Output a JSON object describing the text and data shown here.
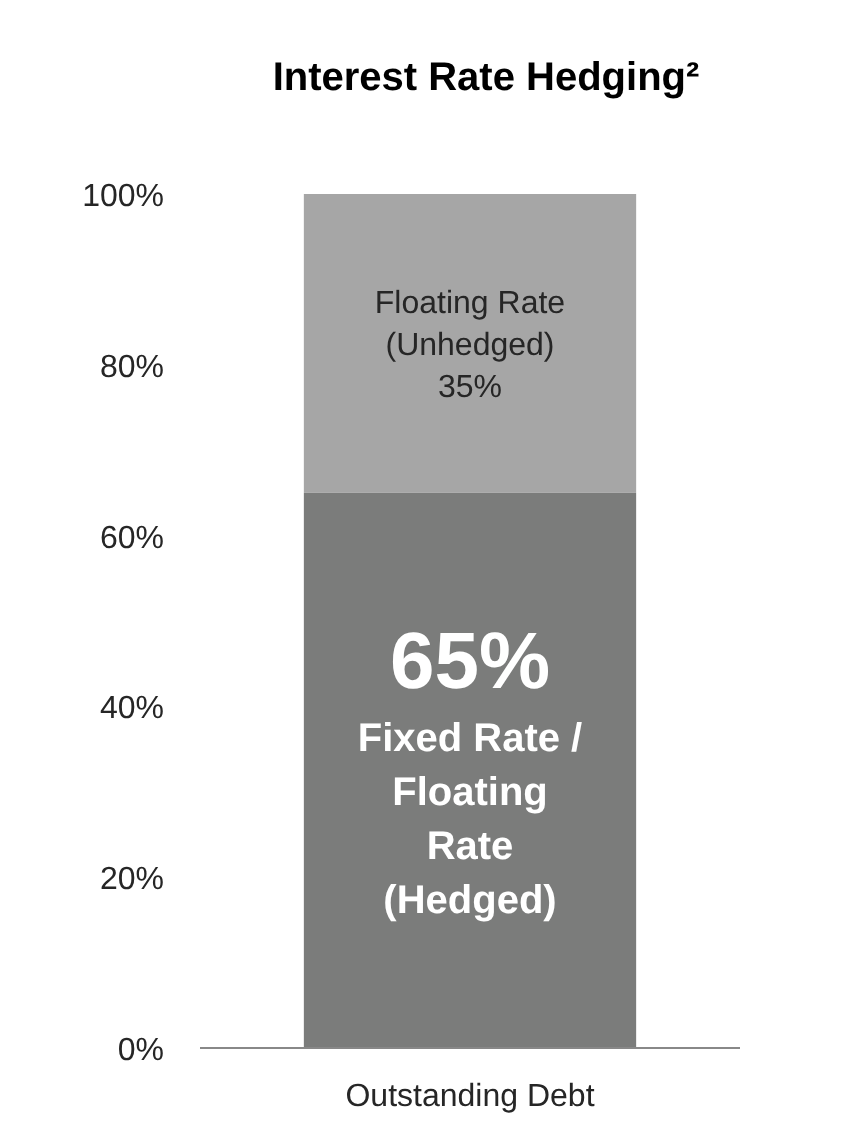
{
  "chart_data": {
    "type": "bar",
    "title": "Interest Rate Hedging²",
    "categories": [
      "Outstanding Debt"
    ],
    "stacked": true,
    "series": [
      {
        "name": "Fixed Rate / Floating Rate (Hedged)",
        "color": "#7b7c7b",
        "values": [
          65
        ],
        "value_labels": [
          "65%"
        ]
      },
      {
        "name": "Floating Rate (Unhedged)",
        "color": "#a6a6a6",
        "values": [
          35
        ],
        "value_labels": [
          "35%"
        ]
      }
    ],
    "ylim": [
      0,
      100
    ],
    "yticks": [
      {
        "value": 0,
        "label": "0%"
      },
      {
        "value": 20,
        "label": "20%"
      },
      {
        "value": 40,
        "label": "40%"
      },
      {
        "value": 60,
        "label": "60%"
      },
      {
        "value": 80,
        "label": "80%"
      },
      {
        "value": 100,
        "label": "100%"
      }
    ],
    "grid": false
  }
}
